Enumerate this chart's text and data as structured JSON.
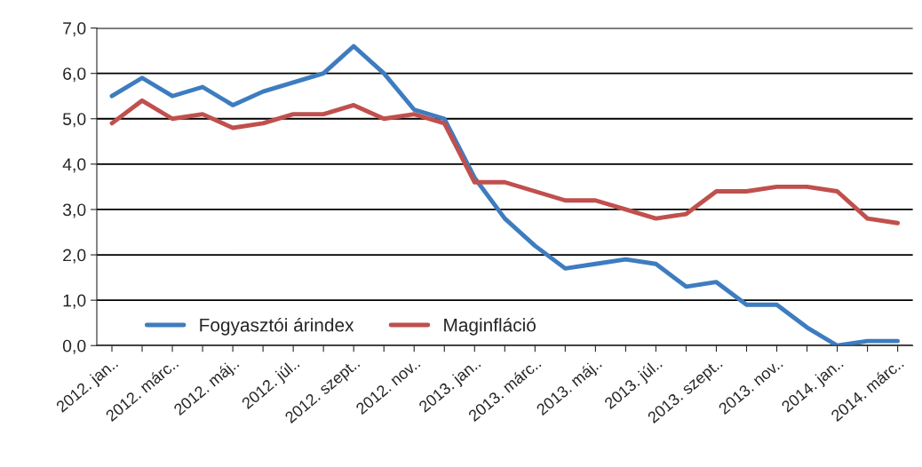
{
  "chart_data": {
    "type": "line",
    "categories": [
      "2012. jan..",
      null,
      "2012. márc..",
      null,
      "2012. máj..",
      null,
      "2012. júl..",
      null,
      "2012. szept..",
      null,
      "2012. nov..",
      null,
      "2013. jan..",
      null,
      "2013. márc..",
      null,
      "2013. máj..",
      null,
      "2013. júl..",
      null,
      "2013. szept..",
      null,
      "2013. nov..",
      null,
      "2014. jan..",
      null,
      "2014. márc.."
    ],
    "series": [
      {
        "name": "Fogyasztói árindex",
        "color": "#3e7cc0",
        "values": [
          5.5,
          5.9,
          5.5,
          5.7,
          5.3,
          5.6,
          5.8,
          6.0,
          6.6,
          6.0,
          5.2,
          5.0,
          3.7,
          2.8,
          2.2,
          1.7,
          1.8,
          1.9,
          1.8,
          1.3,
          1.4,
          0.9,
          0.9,
          0.4,
          0.0,
          0.1,
          0.1
        ]
      },
      {
        "name": "Maginfláció",
        "color": "#c0504d",
        "values": [
          4.9,
          5.4,
          5.0,
          5.1,
          4.8,
          4.9,
          5.1,
          5.1,
          5.3,
          5.0,
          5.1,
          4.9,
          3.6,
          3.6,
          3.4,
          3.2,
          3.2,
          3.0,
          2.8,
          2.9,
          3.4,
          3.4,
          3.5,
          3.5,
          3.4,
          2.8,
          2.7
        ]
      }
    ],
    "ylim": [
      0,
      7
    ],
    "yticks": [
      {
        "value": 0,
        "label": "0,0"
      },
      {
        "value": 1,
        "label": "1,0"
      },
      {
        "value": 2,
        "label": "2,0"
      },
      {
        "value": 3,
        "label": "3,0"
      },
      {
        "value": 4,
        "label": "4,0"
      },
      {
        "value": 5,
        "label": "5,0"
      },
      {
        "value": 6,
        "label": "6,0"
      },
      {
        "value": 7,
        "label": "7,0"
      }
    ],
    "grid": "y",
    "legend": "bottom",
    "marker": "none",
    "line_style": "solid"
  }
}
